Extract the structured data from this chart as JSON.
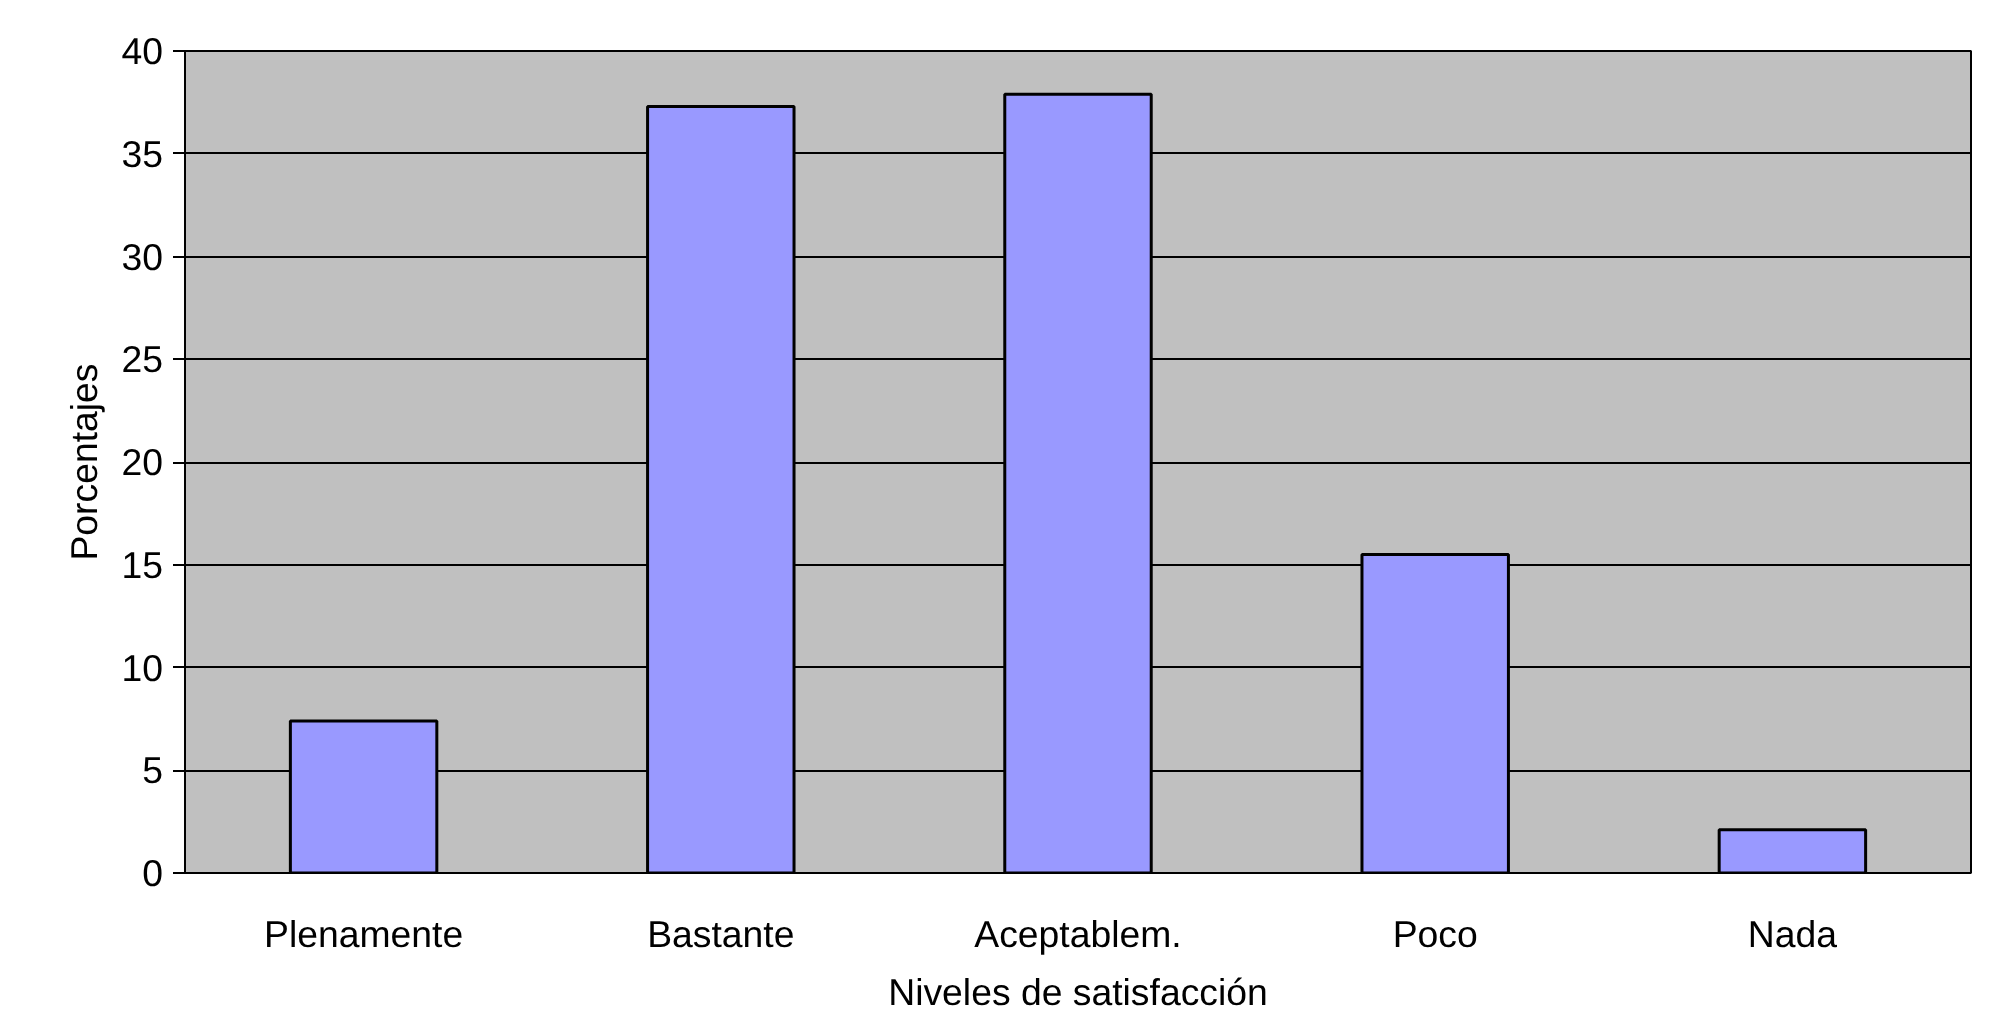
{
  "chart_data": {
    "type": "bar",
    "xlabel": "Niveles de satisfacción",
    "ylabel": "Porcentajes",
    "categories": [
      "Plenamente",
      "Bastante",
      "Aceptablem.",
      "Poco",
      "Nada"
    ],
    "values": [
      7.4,
      37.3,
      37.9,
      15.5,
      2.1
    ],
    "color": "#9999ff",
    "ylim": [
      0,
      40
    ],
    "yticks": [
      0,
      5,
      10,
      15,
      20,
      25,
      30,
      35,
      40
    ],
    "grid": "y"
  }
}
